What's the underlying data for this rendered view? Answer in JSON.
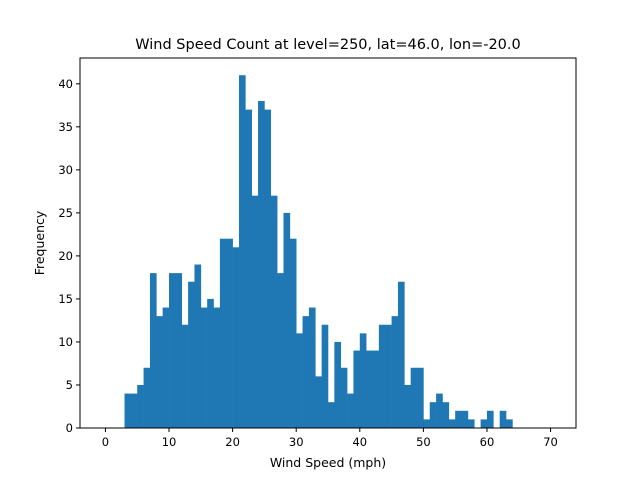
{
  "chart_data": {
    "type": "bar",
    "title": "Wind Speed Count at level=250, lat=46.0, lon=-20.0",
    "xlabel": "Wind Speed (mph)",
    "ylabel": "Frequency",
    "xlim": [
      -4,
      74
    ],
    "ylim": [
      0,
      43
    ],
    "xticks": [
      0,
      10,
      20,
      30,
      40,
      50,
      60,
      70
    ],
    "yticks": [
      0,
      5,
      10,
      15,
      20,
      25,
      30,
      35,
      40
    ],
    "grid": false,
    "legend": "none",
    "bar_color": "#1f77b4",
    "bin_width": 1,
    "bins_start": [
      3,
      4,
      5,
      6,
      7,
      8,
      9,
      10,
      11,
      12,
      13,
      14,
      15,
      16,
      17,
      18,
      19,
      20,
      21,
      22,
      23,
      24,
      25,
      26,
      27,
      28,
      29,
      30,
      31,
      32,
      33,
      34,
      35,
      36,
      37,
      38,
      39,
      40,
      41,
      42,
      43,
      44,
      45,
      46,
      47,
      48,
      49,
      50,
      51,
      52,
      53,
      54,
      55,
      56,
      57,
      58,
      59,
      60,
      61,
      62,
      63
    ],
    "values": [
      4,
      4,
      5,
      7,
      18,
      13,
      14,
      18,
      18,
      12,
      17,
      19,
      14,
      15,
      14,
      22,
      22,
      21,
      41,
      37,
      27,
      38,
      37,
      27,
      18,
      25,
      22,
      11,
      13,
      14,
      6,
      12,
      3,
      10,
      7,
      4,
      9,
      11,
      9,
      9,
      12,
      12,
      13,
      17,
      5,
      7,
      7,
      1,
      3,
      4,
      3,
      1,
      2,
      2,
      1,
      0,
      1,
      2,
      0,
      2,
      1
    ]
  }
}
